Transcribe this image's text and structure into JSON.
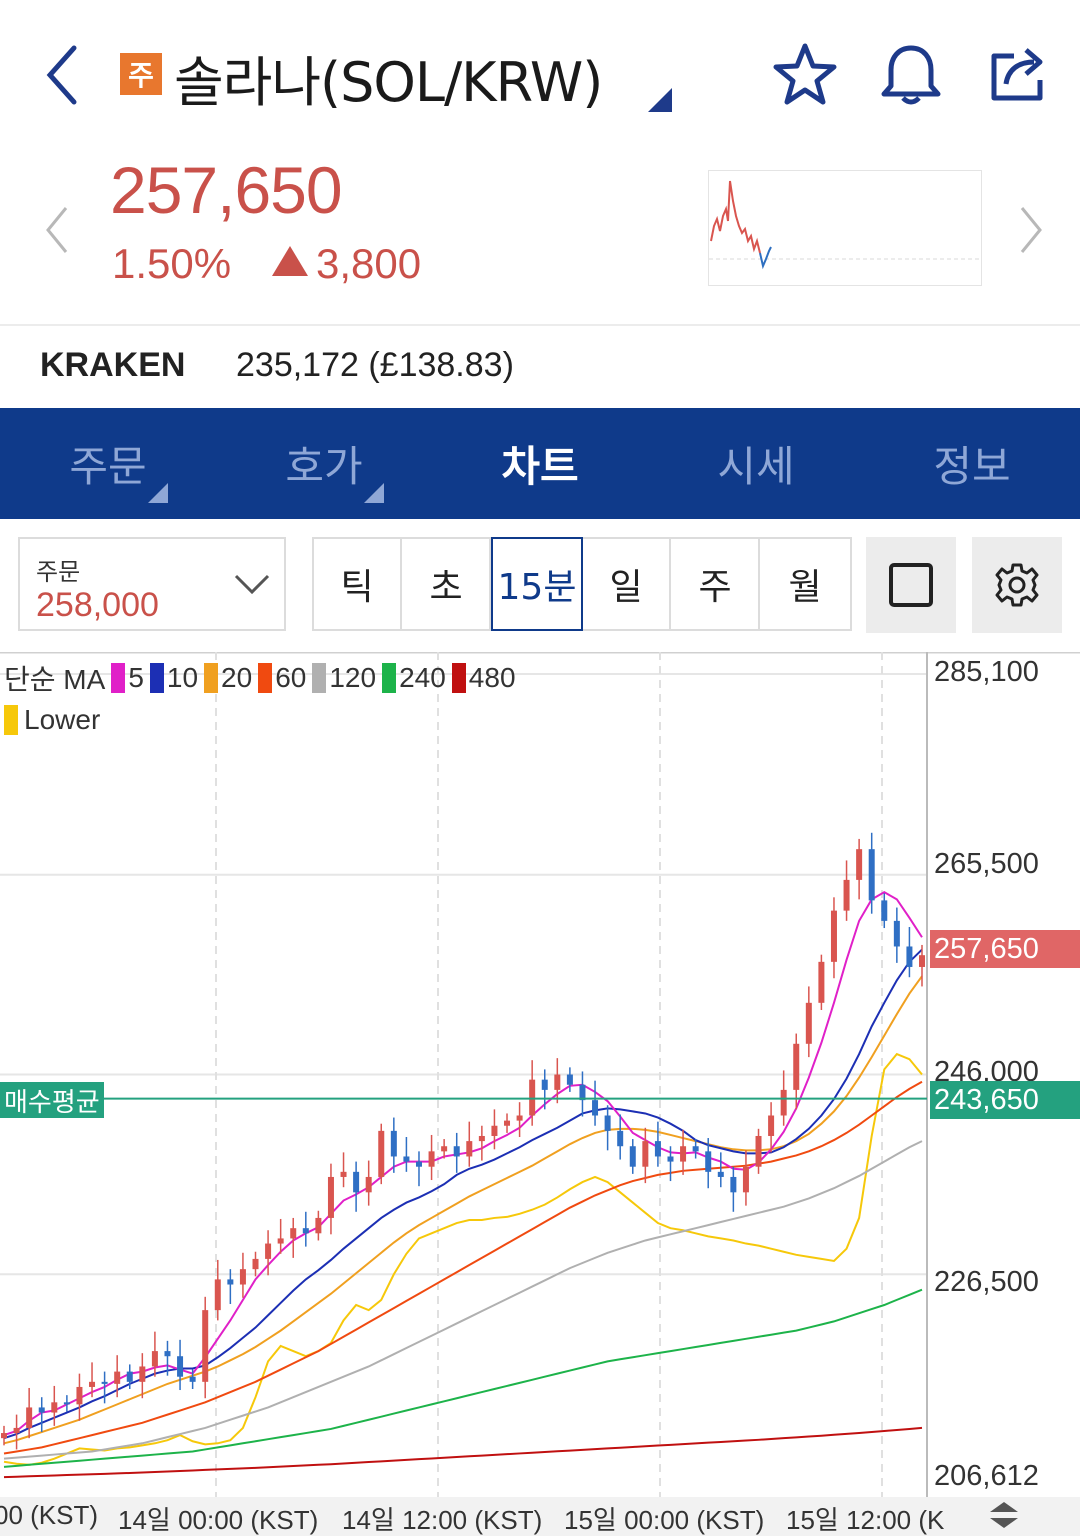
{
  "header": {
    "badge": "주",
    "title": "솔라나(SOL/KRW)"
  },
  "price": {
    "current": "257,650",
    "change_pct": "1.50%",
    "change_abs": "3,800",
    "up_color": "#c9514a"
  },
  "exchange": {
    "name": "KRAKEN",
    "value": "235,172 (£138.83)"
  },
  "tabs": [
    {
      "label": "주문"
    },
    {
      "label": "호가"
    },
    {
      "label": "차트"
    },
    {
      "label": "시세"
    },
    {
      "label": "정보"
    }
  ],
  "active_tab": "차트",
  "order": {
    "label": "주문",
    "value": "258,000"
  },
  "periods": [
    {
      "label": "틱"
    },
    {
      "label": "초"
    },
    {
      "label": "15분"
    },
    {
      "label": "일"
    },
    {
      "label": "주"
    },
    {
      "label": "월"
    }
  ],
  "selected_period": "15분",
  "legend": {
    "prefix": "단순 MA",
    "items": [
      {
        "label": "5",
        "color": "#e020c8"
      },
      {
        "label": "10",
        "color": "#1c2fb4"
      },
      {
        "label": "20",
        "color": "#f0a020"
      },
      {
        "label": "60",
        "color": "#f04a10"
      },
      {
        "label": "120",
        "color": "#b0b0b0"
      },
      {
        "label": "240",
        "color": "#1db34a"
      },
      {
        "label": "480",
        "color": "#c01010"
      }
    ],
    "lower_label": "Lower",
    "lower_color": "#f6c80a"
  },
  "chart_data": {
    "type": "candlestick",
    "y_ticks": [
      "285,100",
      "265,500",
      "246,000",
      "226,500",
      "206,612"
    ],
    "ylim": [
      206612,
      285100
    ],
    "x_ticks": [
      "00 (KST)",
      "14일 00:00 (KST)",
      "14일 12:00 (KST)",
      "15일 00:00 (KST)",
      "15일 12:00 (K"
    ],
    "current_price_label": "257,650",
    "avg_buy_label": "243,650",
    "avg_buy_name": "매수평균",
    "avg_buy_value": 243650,
    "current_value": 257650,
    "closes": [
      211000,
      211500,
      213500,
      213000,
      214000,
      213800,
      215500,
      216000,
      215800,
      217000,
      216000,
      217500,
      219000,
      218500,
      216500,
      216000,
      223000,
      226000,
      225500,
      227000,
      228000,
      229500,
      230000,
      231000,
      230500,
      232000,
      236000,
      236500,
      234500,
      236000,
      240500,
      238000,
      237500,
      237000,
      238500,
      239000,
      238000,
      239500,
      240000,
      241000,
      241500,
      242000,
      245500,
      244500,
      246000,
      245000,
      243500,
      242000,
      240500,
      239000,
      237000,
      239500,
      238000,
      237500,
      239000,
      238500,
      236500,
      236000,
      234500,
      237000,
      240000,
      242000,
      244500,
      249000,
      253000,
      257000,
      262000,
      265000,
      268000,
      263000,
      261000,
      258500,
      256500,
      257650
    ],
    "ma5": [
      210800,
      211200,
      212200,
      213000,
      213200,
      213800,
      214400,
      215000,
      215500,
      216200,
      216800,
      217000,
      217400,
      217600,
      217200,
      216800,
      218400,
      220200,
      222000,
      224000,
      226000,
      227400,
      228700,
      229800,
      230500,
      231100,
      232400,
      233700,
      234300,
      235000,
      236000,
      237000,
      237500,
      237500,
      237500,
      238000,
      238200,
      238400,
      238800,
      239500,
      240100,
      240800,
      242000,
      243100,
      244100,
      244900,
      245000,
      244300,
      243400,
      241900,
      240300,
      239600,
      238900,
      238400,
      238300,
      238400,
      237900,
      237500,
      236800,
      236700,
      237400,
      238700,
      240400,
      242700,
      245700,
      249100,
      253000,
      257200,
      261000,
      263100,
      263800,
      263100,
      261300,
      259400
    ],
    "ma10": [
      210500,
      210900,
      211500,
      212000,
      212500,
      213000,
      213500,
      214100,
      214600,
      215200,
      215800,
      216300,
      216800,
      217100,
      217300,
      217300,
      217600,
      218400,
      219300,
      220300,
      221300,
      222500,
      223700,
      224900,
      226000,
      226900,
      227900,
      229000,
      230000,
      231000,
      232000,
      232800,
      233500,
      234000,
      234600,
      235300,
      236200,
      236800,
      237200,
      237700,
      238300,
      238900,
      239600,
      240200,
      240800,
      241500,
      242200,
      242500,
      242700,
      242600,
      242400,
      242200,
      241800,
      241200,
      240500,
      239600,
      239100,
      238800,
      238500,
      238300,
      238300,
      238400,
      238900,
      239700,
      240700,
      242000,
      243600,
      245600,
      248000,
      250700,
      253000,
      255200,
      257000,
      258200
    ],
    "ma20": [
      210000,
      210300,
      210700,
      211100,
      211500,
      211900,
      212300,
      212800,
      213300,
      213800,
      214300,
      214800,
      215300,
      215800,
      216200,
      216600,
      217000,
      217500,
      218100,
      218700,
      219400,
      220200,
      221000,
      221900,
      222800,
      223700,
      224600,
      225600,
      226600,
      227600,
      228600,
      229600,
      230500,
      231300,
      232000,
      232700,
      233400,
      234100,
      234700,
      235300,
      235900,
      236500,
      237100,
      237800,
      238500,
      239200,
      239800,
      240300,
      240600,
      240700,
      240700,
      240600,
      240400,
      240100,
      239800,
      239500,
      239200,
      238900,
      238700,
      238600,
      238600,
      238700,
      239000,
      239500,
      240200,
      241200,
      242400,
      243900,
      245700,
      247700,
      249800,
      251900,
      253900,
      255600
    ],
    "ma60": [
      209000,
      209200,
      209400,
      209600,
      209900,
      210200,
      210500,
      210800,
      211100,
      211400,
      211700,
      212000,
      212400,
      212800,
      213200,
      213600,
      214000,
      214500,
      215000,
      215500,
      216000,
      216600,
      217200,
      217800,
      218400,
      219000,
      219700,
      220400,
      221100,
      221800,
      222500,
      223200,
      223900,
      224600,
      225300,
      226000,
      226700,
      227400,
      228100,
      228800,
      229500,
      230200,
      230900,
      231600,
      232300,
      233000,
      233600,
      234200,
      234700,
      235200,
      235600,
      235900,
      236200,
      236400,
      236600,
      236700,
      236800,
      236900,
      237000,
      237100,
      237300,
      237500,
      237800,
      238100,
      238500,
      239000,
      239600,
      240300,
      241100,
      242000,
      242900,
      243800,
      244600,
      245300
    ],
    "ma120": [
      208500,
      208600,
      208700,
      208800,
      208900,
      209000,
      209100,
      209200,
      209400,
      209600,
      209800,
      210000,
      210300,
      210600,
      210900,
      211200,
      211500,
      211900,
      212300,
      212700,
      213100,
      213500,
      214000,
      214500,
      215000,
      215500,
      216000,
      216500,
      217000,
      217500,
      218100,
      218700,
      219300,
      219900,
      220500,
      221100,
      221700,
      222300,
      222900,
      223500,
      224100,
      224700,
      225300,
      225900,
      226500,
      227100,
      227600,
      228100,
      228600,
      229000,
      229400,
      229800,
      230100,
      230400,
      230700,
      231000,
      231300,
      231600,
      231900,
      232200,
      232500,
      232800,
      233100,
      233500,
      233900,
      234400,
      234900,
      235500,
      236100,
      236800,
      237500,
      238200,
      238900,
      239500
    ],
    "ma240": [
      207700,
      207800,
      207900,
      208000,
      208100,
      208200,
      208300,
      208400,
      208500,
      208600,
      208700,
      208800,
      208900,
      209000,
      209100,
      209200,
      209400,
      209600,
      209800,
      210000,
      210200,
      210400,
      210600,
      210800,
      211000,
      211200,
      211400,
      211700,
      212000,
      212300,
      212600,
      212900,
      213200,
      213500,
      213800,
      214100,
      214400,
      214700,
      215000,
      215300,
      215600,
      215900,
      216200,
      216500,
      216800,
      217100,
      217400,
      217700,
      218000,
      218200,
      218400,
      218600,
      218800,
      219000,
      219200,
      219400,
      219600,
      219800,
      220000,
      220200,
      220400,
      220600,
      220800,
      221000,
      221300,
      221600,
      221900,
      222300,
      222700,
      223100,
      223500,
      224000,
      224500,
      225000
    ],
    "ma480": [
      206700,
      206740,
      206780,
      206820,
      206860,
      206900,
      206940,
      206980,
      207020,
      207060,
      207100,
      207150,
      207200,
      207250,
      207300,
      207350,
      207400,
      207450,
      207500,
      207550,
      207600,
      207660,
      207720,
      207780,
      207840,
      207900,
      207960,
      208030,
      208100,
      208170,
      208240,
      208310,
      208380,
      208450,
      208520,
      208590,
      208660,
      208730,
      208800,
      208870,
      208940,
      209010,
      209080,
      209150,
      209220,
      209290,
      209360,
      209430,
      209500,
      209570,
      209640,
      209710,
      209780,
      209850,
      209920,
      209990,
      210060,
      210130,
      210200,
      210270,
      210340,
      210420,
      210500,
      210580,
      210660,
      210740,
      210830,
      210920,
      211010,
      211100,
      211200,
      211300,
      211400,
      211500
    ],
    "lower": [
      208200,
      208000,
      207900,
      208100,
      208500,
      209000,
      209500,
      209400,
      209300,
      209500,
      209600,
      209800,
      210000,
      210300,
      210800,
      210200,
      209900,
      210000,
      210300,
      211500,
      214500,
      218000,
      219500,
      219000,
      218500,
      219000,
      219800,
      222000,
      223500,
      223000,
      224000,
      226500,
      228500,
      230000,
      230500,
      231000,
      231500,
      231800,
      231800,
      232000,
      232100,
      232400,
      232800,
      233300,
      234000,
      234800,
      235500,
      236000,
      235500,
      234500,
      233500,
      232500,
      231500,
      231000,
      230800,
      230500,
      230200,
      230000,
      229800,
      229500,
      229300,
      229000,
      228700,
      228400,
      228200,
      228000,
      227800,
      229000,
      232000,
      240000,
      246500,
      248000,
      247500,
      246000
    ]
  }
}
